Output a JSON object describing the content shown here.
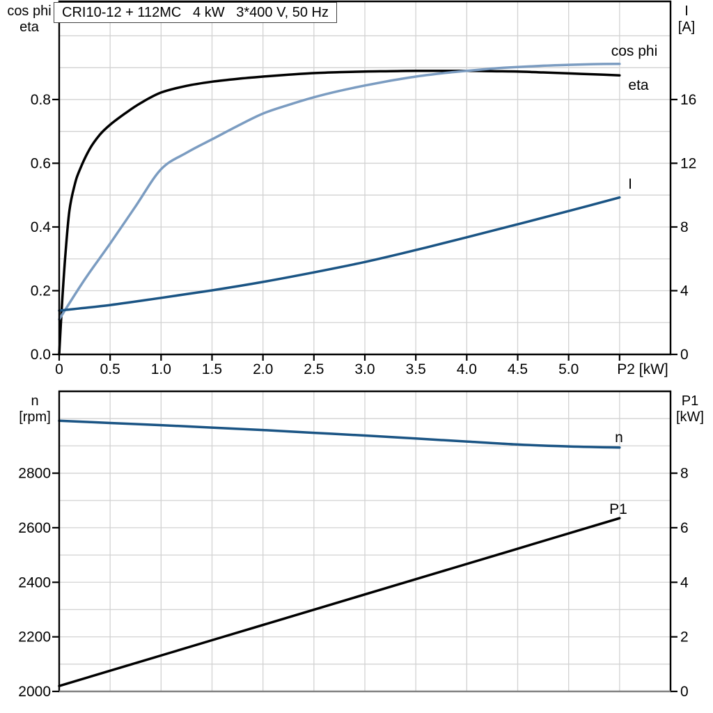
{
  "title_box": {
    "text": "CRI10-12 + 112MC   4 kW   3*400 V, 50 Hz"
  },
  "colors": {
    "light_blue": "#7B9CC1",
    "dark_blue": "#1A5484",
    "black": "#000000",
    "grid": "#d2d2d2",
    "frame": "#000000",
    "bottom_chart_baseline": "#808080"
  },
  "chart_data": [
    {
      "type": "line",
      "title": "CRI10-12 + 112MC   4 kW   3*400 V, 50 Hz",
      "x_axis": {
        "label": "P2 [kW]",
        "range": [
          0,
          6
        ],
        "tick_step": 0.5,
        "grid_step": 0.5,
        "tick_labels": [
          "0",
          "0.5",
          "1.0",
          "1.5",
          "2.0",
          "2.5",
          "3.0",
          "3.5",
          "4.0",
          "4.5",
          "5.0"
        ]
      },
      "left_axis": {
        "title_lines": [
          "cos phi",
          "eta"
        ],
        "range": [
          0,
          1.108
        ],
        "grid_step": 0.1,
        "tick_values": [
          0,
          0.2,
          0.4,
          0.6,
          0.8
        ],
        "tick_labels": [
          "0.0",
          "0.2",
          "0.4",
          "0.6",
          "0.8"
        ]
      },
      "right_axis": {
        "title_lines": [
          "I",
          "[A]"
        ],
        "range": [
          0,
          22.16
        ],
        "grid_step": 2,
        "tick_values": [
          0,
          4,
          8,
          12,
          16
        ],
        "tick_labels": [
          "0",
          "4",
          "8",
          "12",
          "16"
        ]
      },
      "series": [
        {
          "name": "eta",
          "label": "eta",
          "axis": "left",
          "color_key": "black",
          "points": [
            [
              0,
              0
            ],
            [
              0.03,
              0.17
            ],
            [
              0.06,
              0.31
            ],
            [
              0.1,
              0.45
            ],
            [
              0.15,
              0.53
            ],
            [
              0.2,
              0.578
            ],
            [
              0.3,
              0.645
            ],
            [
              0.4,
              0.69
            ],
            [
              0.5,
              0.721
            ],
            [
              0.65,
              0.757
            ],
            [
              0.8,
              0.789
            ],
            [
              1.0,
              0.822
            ],
            [
              1.25,
              0.843
            ],
            [
              1.5,
              0.856
            ],
            [
              1.75,
              0.865
            ],
            [
              2.0,
              0.872
            ],
            [
              2.25,
              0.878
            ],
            [
              2.5,
              0.883
            ],
            [
              2.75,
              0.886
            ],
            [
              3.0,
              0.888
            ],
            [
              3.25,
              0.889
            ],
            [
              3.5,
              0.89
            ],
            [
              3.75,
              0.89
            ],
            [
              4.0,
              0.89
            ],
            [
              4.25,
              0.889
            ],
            [
              4.5,
              0.888
            ],
            [
              4.75,
              0.885
            ],
            [
              5.0,
              0.882
            ],
            [
              5.25,
              0.879
            ],
            [
              5.5,
              0.876
            ]
          ]
        },
        {
          "name": "cos phi",
          "label": "cos phi",
          "axis": "left",
          "color_key": "light_blue",
          "points": [
            [
              0,
              0.11
            ],
            [
              0.25,
              0.235
            ],
            [
              0.5,
              0.348
            ],
            [
              0.75,
              0.465
            ],
            [
              1.0,
              0.581
            ],
            [
              1.25,
              0.633
            ],
            [
              1.5,
              0.675
            ],
            [
              1.75,
              0.717
            ],
            [
              2.0,
              0.756
            ],
            [
              2.25,
              0.783
            ],
            [
              2.5,
              0.807
            ],
            [
              2.75,
              0.827
            ],
            [
              3.0,
              0.844
            ],
            [
              3.25,
              0.859
            ],
            [
              3.5,
              0.872
            ],
            [
              3.75,
              0.882
            ],
            [
              4.0,
              0.89
            ],
            [
              4.25,
              0.897
            ],
            [
              4.5,
              0.902
            ],
            [
              4.75,
              0.906
            ],
            [
              5.0,
              0.909
            ],
            [
              5.25,
              0.911
            ],
            [
              5.5,
              0.912
            ]
          ]
        },
        {
          "name": "I",
          "label": "I",
          "axis": "right",
          "color_key": "dark_blue",
          "points": [
            [
              0,
              2.75
            ],
            [
              0.5,
              3.1
            ],
            [
              1.0,
              3.55
            ],
            [
              1.5,
              4.02
            ],
            [
              2.0,
              4.55
            ],
            [
              2.5,
              5.15
            ],
            [
              3.0,
              5.8
            ],
            [
              3.5,
              6.55
            ],
            [
              4.0,
              7.35
            ],
            [
              4.5,
              8.17
            ],
            [
              5.0,
              9.0
            ],
            [
              5.5,
              9.85
            ]
          ]
        }
      ]
    },
    {
      "type": "line",
      "title": "",
      "x_axis": {
        "label": "",
        "range": [
          0,
          6
        ],
        "tick_step": 0.5,
        "grid_step": 0.5,
        "tick_labels": []
      },
      "left_axis": {
        "title_lines": [
          "n",
          "[rpm]"
        ],
        "range": [
          2000,
          3100
        ],
        "grid_step": 100,
        "tick_values": [
          2000,
          2200,
          2400,
          2600,
          2800
        ],
        "tick_labels": [
          "2000",
          "2200",
          "2400",
          "2600",
          "2800"
        ]
      },
      "right_axis": {
        "title_lines": [
          "P1",
          "[kW]"
        ],
        "range": [
          0,
          11
        ],
        "grid_step": 1,
        "tick_values": [
          0,
          2,
          4,
          6,
          8
        ],
        "tick_labels": [
          "0",
          "2",
          "4",
          "6",
          "8"
        ]
      },
      "series": [
        {
          "name": "P1",
          "label": "P1",
          "axis": "right",
          "color_key": "black",
          "points": [
            [
              0,
              0.2
            ],
            [
              1.1,
              1.43
            ],
            [
              2.2,
              2.66
            ],
            [
              3.3,
              3.89
            ],
            [
              4.4,
              5.12
            ],
            [
              5.5,
              6.35
            ]
          ]
        },
        {
          "name": "n",
          "label": "n",
          "axis": "left",
          "color_key": "dark_blue",
          "points": [
            [
              0,
              2992
            ],
            [
              0.5,
              2984
            ],
            [
              1.0,
              2976
            ],
            [
              1.5,
              2967
            ],
            [
              2.0,
              2958
            ],
            [
              2.5,
              2948
            ],
            [
              3.0,
              2938
            ],
            [
              3.5,
              2927
            ],
            [
              4.0,
              2916
            ],
            [
              4.5,
              2905
            ],
            [
              5.0,
              2898
            ],
            [
              5.5,
              2894
            ]
          ]
        }
      ]
    }
  ]
}
